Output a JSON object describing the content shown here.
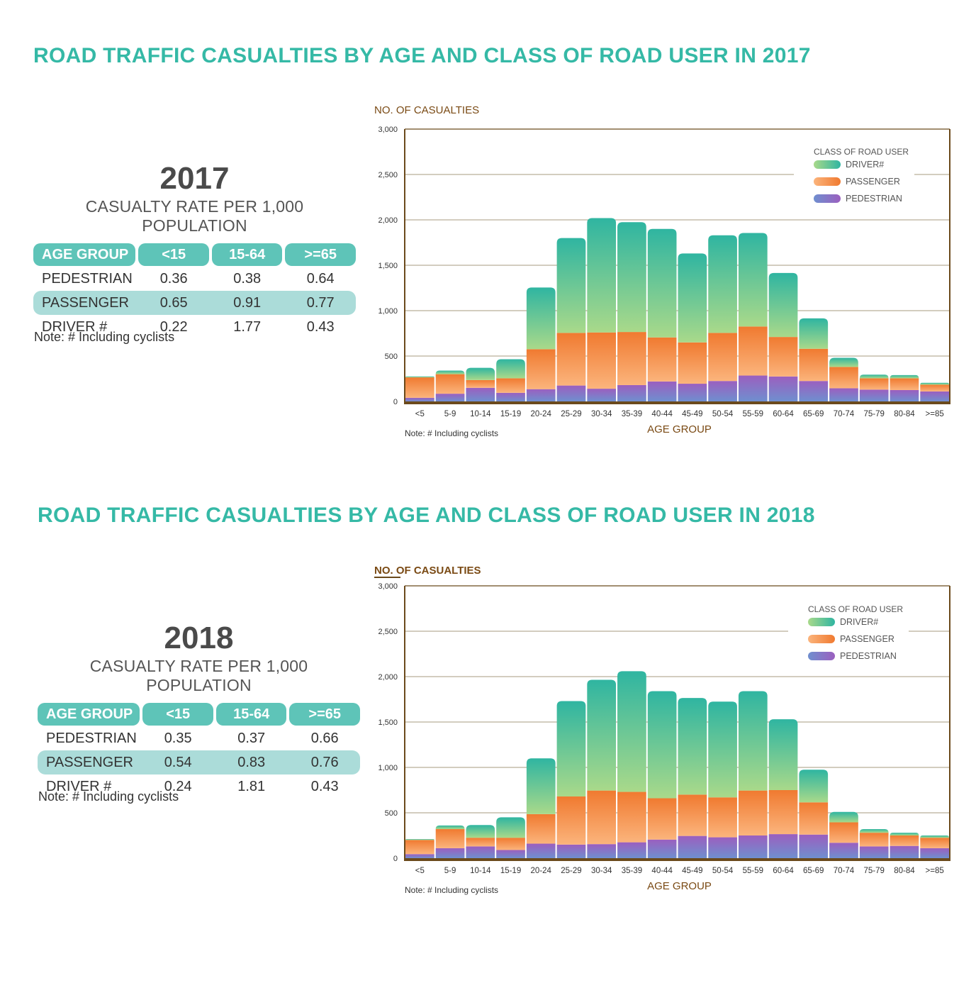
{
  "sections": [
    {
      "title": "ROAD TRAFFIC CASUALTIES BY AGE AND CLASS OF ROAD USER IN 2017",
      "rate_table": {
        "year": "2017",
        "subtitle": "CASUALTY RATE PER 1,000 POPULATION",
        "headers": [
          "AGE GROUP",
          "<15",
          "15-64",
          ">=65"
        ],
        "rows": [
          {
            "label": "PEDESTRIAN",
            "values": [
              "0.36",
              "0.38",
              "0.64"
            ]
          },
          {
            "label": "PASSENGER",
            "values": [
              "0.65",
              "0.91",
              "0.77"
            ]
          },
          {
            "label": "DRIVER #",
            "values": [
              "0.22",
              "1.77",
              "0.43"
            ]
          }
        ],
        "note": "Note:  #  Including cyclists"
      },
      "chart_data": {
        "type": "bar",
        "stacked": true,
        "ylabel": "NO. OF CASUALTIES",
        "xlabel": "AGE GROUP",
        "ylim": [
          0,
          3000
        ],
        "yticks": [
          "0",
          "500",
          "1,000",
          "1,500",
          "2,000",
          "2,500",
          "3,000"
        ],
        "grid": true,
        "legend_title": "CLASS OF ROAD USER",
        "legend_position": "top-right",
        "note": "Note:  # Including cyclists",
        "categories": [
          "<5",
          "5-9",
          "10-14",
          "15-19",
          "20-24",
          "25-29",
          "30-34",
          "35-39",
          "40-44",
          "45-49",
          "50-54",
          "55-59",
          "60-64",
          "65-69",
          "70-74",
          "75-79",
          "80-84",
          ">=85"
        ],
        "series": [
          {
            "name": "PEDESTRIAN",
            "values": [
              40,
              85,
              150,
              95,
              135,
              175,
              140,
              180,
              220,
              195,
              225,
              285,
              275,
              225,
              145,
              130,
              125,
              110
            ]
          },
          {
            "name": "PASSENGER",
            "values": [
              225,
              215,
              85,
              160,
              440,
              580,
              620,
              585,
              485,
              455,
              530,
              540,
              435,
              355,
              235,
              125,
              130,
              75
            ]
          },
          {
            "name": "DRIVER#",
            "values": [
              10,
              40,
              135,
              210,
              680,
              1045,
              1260,
              1210,
              1195,
              980,
              1075,
              1030,
              705,
              335,
              100,
              40,
              35,
              20
            ]
          }
        ]
      }
    },
    {
      "title": "ROAD TRAFFIC CASUALTIES BY AGE AND CLASS OF ROAD USER IN 2018",
      "rate_table": {
        "year": "2018",
        "subtitle": "CASUALTY RATE PER 1,000 POPULATION",
        "headers": [
          "AGE GROUP",
          "<15",
          "15-64",
          ">=65"
        ],
        "rows": [
          {
            "label": "PEDESTRIAN",
            "values": [
              "0.35",
              "0.37",
              "0.66"
            ]
          },
          {
            "label": "PASSENGER",
            "values": [
              "0.54",
              "0.83",
              "0.76"
            ]
          },
          {
            "label": "DRIVER #",
            "values": [
              "0.24",
              "1.81",
              "0.43"
            ]
          }
        ],
        "note": "Note:  #  Including cyclists"
      },
      "chart_data": {
        "type": "bar",
        "stacked": true,
        "ylabel": "NO. OF CASUALTIES",
        "xlabel": "AGE GROUP",
        "ylim": [
          0,
          3000
        ],
        "yticks": [
          "0",
          "500",
          "1,000",
          "1,500",
          "2,000",
          "2,500",
          "3,000"
        ],
        "grid": true,
        "legend_title": "CLASS OF ROAD USER",
        "legend_position": "top-right",
        "note": "Note:  # Including cyclists",
        "categories": [
          "<5",
          "5-9",
          "10-14",
          "15-19",
          "20-24",
          "25-29",
          "30-34",
          "35-39",
          "40-44",
          "45-49",
          "50-54",
          "55-59",
          "60-64",
          "65-69",
          "70-74",
          "75-79",
          "80-84",
          ">=85"
        ],
        "series": [
          {
            "name": "PEDESTRIAN",
            "values": [
              45,
              110,
              130,
              90,
              160,
              150,
              155,
              175,
              205,
              245,
              230,
              250,
              265,
              260,
              170,
              130,
              135,
              110
            ]
          },
          {
            "name": "PASSENGER",
            "values": [
              155,
              210,
              95,
              135,
              325,
              530,
              590,
              555,
              455,
              455,
              440,
              495,
              485,
              355,
              225,
              150,
              115,
              115
            ]
          },
          {
            "name": "DRIVER#",
            "values": [
              10,
              40,
              140,
              225,
              615,
              1050,
              1220,
              1330,
              1180,
              1065,
              1055,
              1095,
              780,
              360,
              115,
              40,
              30,
              25
            ]
          }
        ]
      }
    }
  ],
  "colors": {
    "title": "#35b9a6",
    "driver_top": "#2fb5a1",
    "driver_bottom": "#a9d98a",
    "passenger_top": "#f07a30",
    "passenger_bottom": "#fbb47c",
    "pedestrian_top": "#9b5fbf",
    "pedestrian_bottom": "#6f8fcf",
    "axis_text": "#7a4a14",
    "axis_line": "#6b4a1c"
  }
}
